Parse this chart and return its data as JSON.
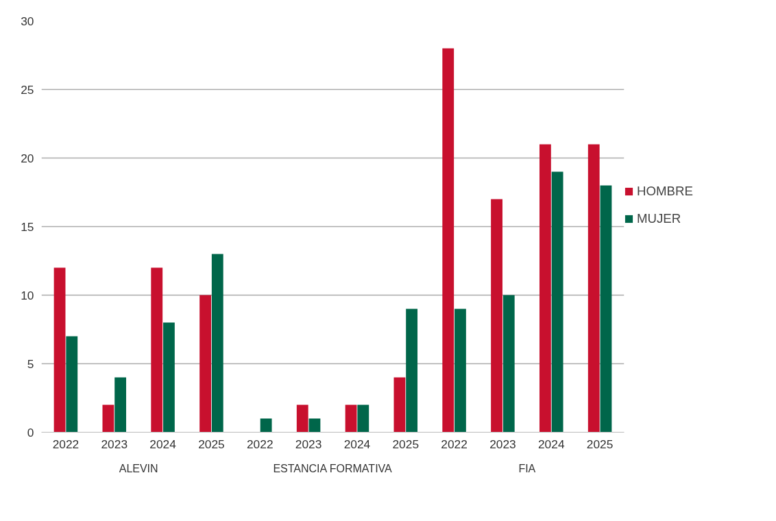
{
  "chart_data": {
    "type": "bar",
    "categories": [
      "2022",
      "2023",
      "2024",
      "2025",
      "2022",
      "2023",
      "2024",
      "2025",
      "2022",
      "2023",
      "2024",
      "2025"
    ],
    "series": [
      {
        "name": "HOMBRE",
        "color": "#c8102e",
        "values": [
          12,
          2,
          12,
          10,
          0,
          2,
          2,
          4,
          28,
          17,
          21,
          21
        ]
      },
      {
        "name": "MUJER",
        "color": "#00664a",
        "values": [
          7,
          4,
          8,
          13,
          1,
          1,
          2,
          9,
          9,
          10,
          19,
          18
        ]
      }
    ],
    "annotations": [
      "ALEVIN",
      "ESTANCIA FORMATIVA",
      "FIA"
    ],
    "ylim": [
      0,
      30
    ],
    "yticks": [
      0,
      5,
      10,
      15,
      20,
      25,
      30
    ],
    "grid": "y",
    "legend": "right"
  }
}
